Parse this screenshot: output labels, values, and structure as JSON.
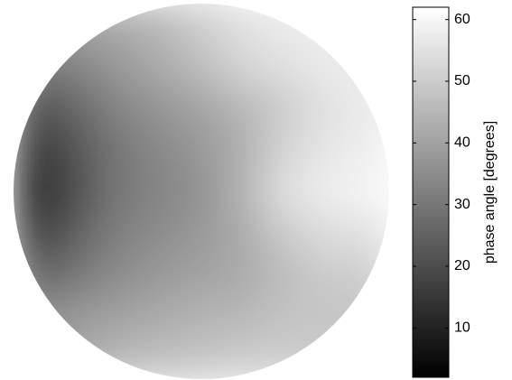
{
  "chart_data": {
    "type": "heatmap",
    "shape": "circle",
    "colormap": "gray",
    "z": [
      [
        40,
        40,
        42,
        45,
        50,
        55,
        57,
        58,
        58
      ],
      [
        30,
        33,
        38,
        42,
        47,
        52,
        55,
        57,
        58
      ],
      [
        20,
        26,
        33,
        37,
        40,
        45,
        50,
        55,
        57
      ],
      [
        14,
        22,
        30,
        34,
        38,
        43,
        52,
        56,
        58
      ],
      [
        10,
        20,
        30,
        33,
        36,
        44,
        55,
        58,
        60
      ],
      [
        15,
        24,
        32,
        35,
        38,
        42,
        50,
        54,
        55
      ],
      [
        25,
        30,
        35,
        38,
        40,
        42,
        46,
        50,
        50
      ],
      [
        35,
        38,
        40,
        42,
        44,
        45,
        48,
        48,
        48
      ],
      [
        40,
        42,
        45,
        47,
        48,
        50,
        50,
        50,
        50
      ]
    ],
    "clim": [
      2,
      62
    ],
    "colorbar": {
      "label": "phase angle [degrees]",
      "ticks": [
        10,
        20,
        30,
        40,
        50,
        60
      ]
    }
  }
}
